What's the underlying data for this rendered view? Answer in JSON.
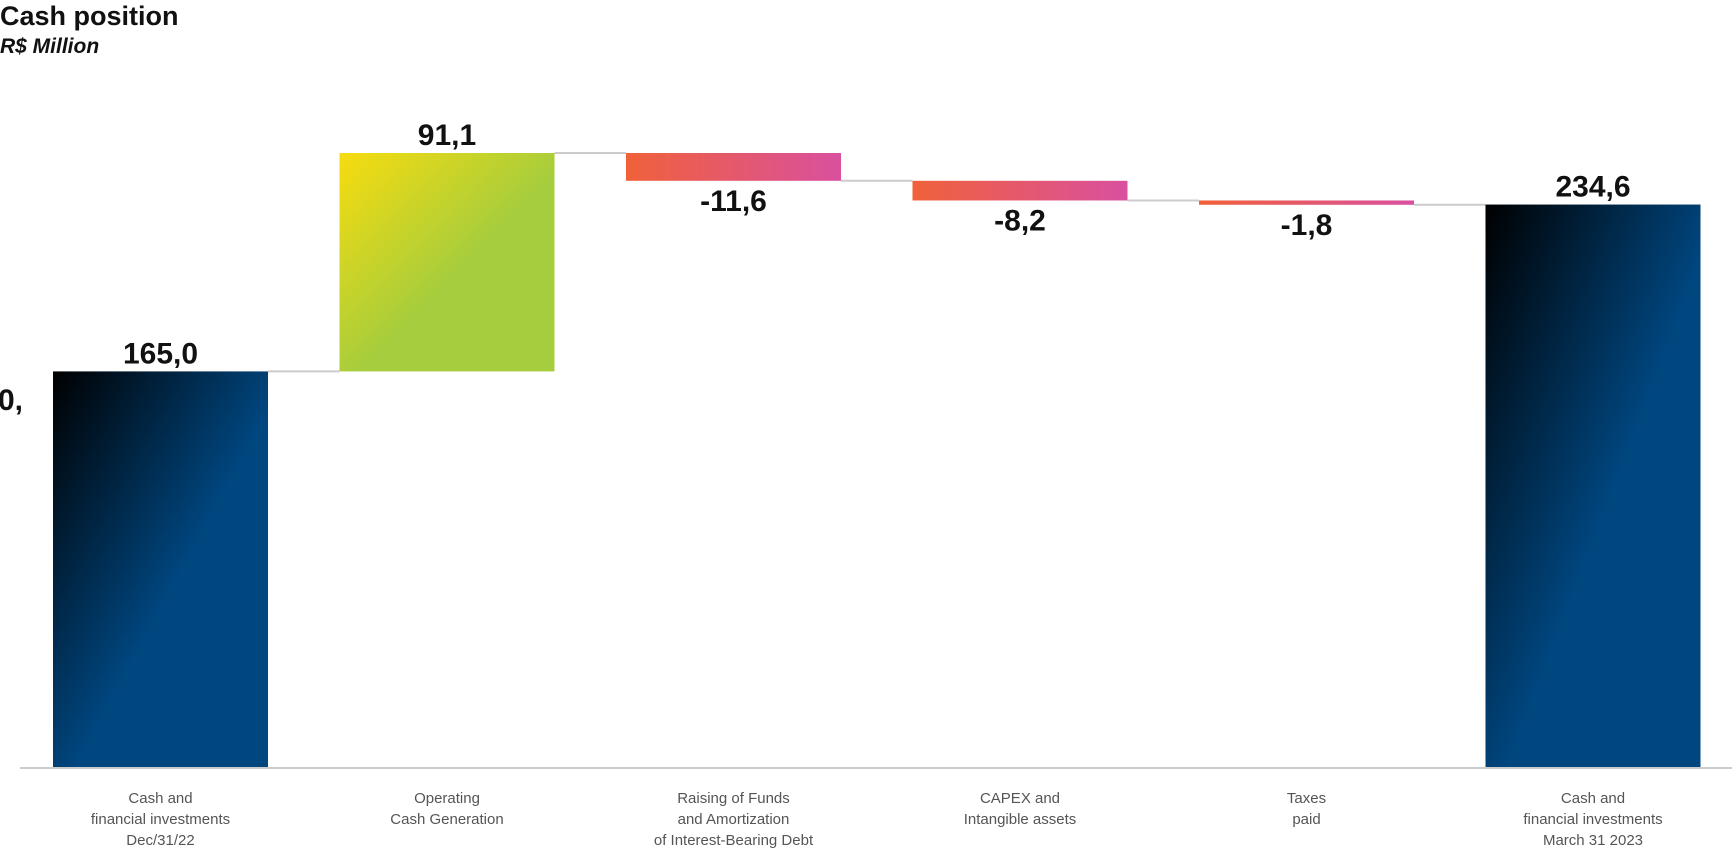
{
  "title": "Cash position",
  "subtitle": "R$ Million",
  "stray_text": "0,",
  "chart_data": {
    "type": "waterfall",
    "title": "Cash position",
    "subtitle": "R$ Million",
    "categories": [
      [
        "Cash and",
        "financial investments",
        "Dec/31/22"
      ],
      [
        "Operating",
        "Cash Generation"
      ],
      [
        "Raising of Funds",
        "and Amortization",
        "of Interest-Bearing Debt"
      ],
      [
        "CAPEX and",
        "Intangible assets"
      ],
      [
        "Taxes",
        "paid"
      ],
      [
        "Cash and",
        "financial investments",
        "March 31 2023"
      ]
    ],
    "values": [
      165.0,
      91.1,
      -11.6,
      -8.2,
      -1.8,
      234.6
    ],
    "kinds": [
      "total",
      "increase",
      "decrease",
      "decrease",
      "decrease",
      "total"
    ],
    "labels": [
      "165,0",
      "91,1",
      "-11,6",
      "-8,2",
      "-1,8",
      "234,6"
    ],
    "ylim": [
      0,
      256.1
    ],
    "grid": false,
    "legend": "none",
    "colors": {
      "total_top": "#000000",
      "total_bottom": "#00467f",
      "increase_start": "#f7dc0f",
      "increase_end": "#a6cd3d",
      "decrease_start": "#f0613a",
      "decrease_end": "#d9509f",
      "connector": "#cccccc",
      "axis": "#cccccc"
    }
  }
}
